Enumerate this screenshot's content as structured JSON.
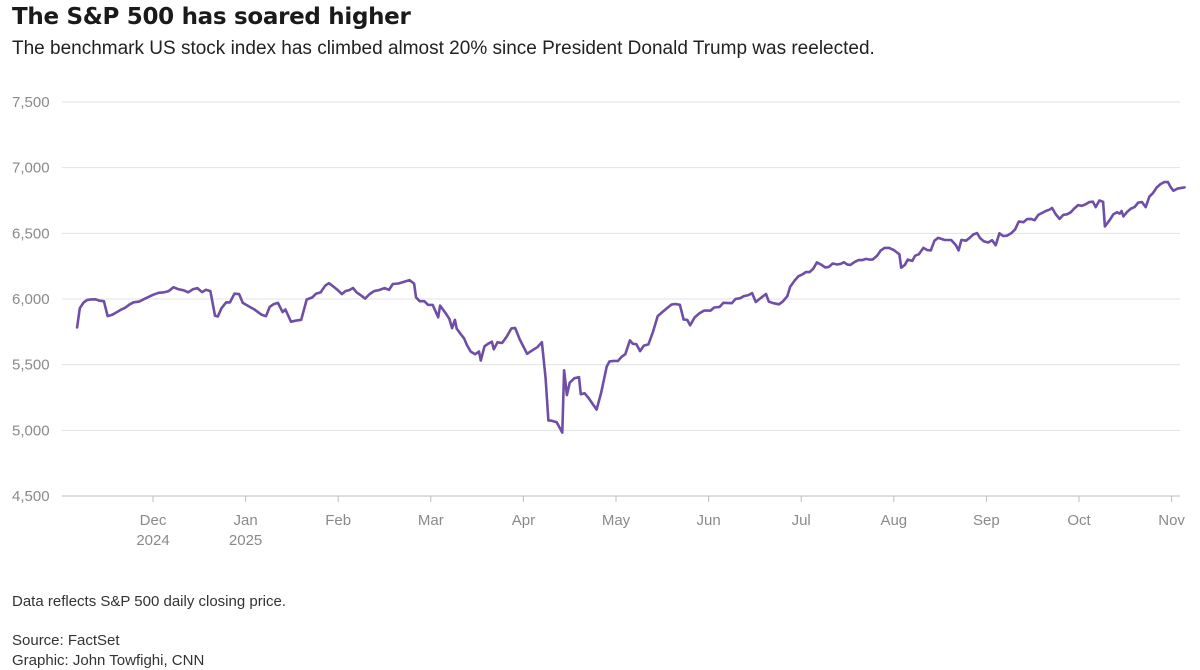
{
  "header": {
    "title": "The S&P 500 has soared higher",
    "subtitle": "The benchmark US stock index has climbed almost 20% since President Donald Trump was reelected."
  },
  "footer": {
    "note": "Data reflects S&P 500 daily closing price.",
    "source": "Source: FactSet",
    "credit": "Graphic: John Towfighi, CNN"
  },
  "colors": {
    "line": "#6e4ea6",
    "grid": "#e3e3e3",
    "axis": "#bdbdbd",
    "tick_text": "#8a8a8a"
  },
  "chart_data": {
    "type": "line",
    "title": "The S&P 500 has soared higher",
    "xlabel": "",
    "ylabel": "",
    "ylim": [
      4500,
      7500
    ],
    "xlim": [
      -0.55,
      11.45
    ],
    "grid": true,
    "yticks": [
      {
        "value": 7500,
        "label": "7,500"
      },
      {
        "value": 7000,
        "label": "7,000"
      },
      {
        "value": 6500,
        "label": "6,500"
      },
      {
        "value": 6000,
        "label": "6,000"
      },
      {
        "value": 5500,
        "label": "5,500"
      },
      {
        "value": 5000,
        "label": "5,000"
      },
      {
        "value": 4500,
        "label": "4,500"
      }
    ],
    "xticks": [
      {
        "month": 0,
        "label": "Dec",
        "label2": "2024"
      },
      {
        "month": 1,
        "label": "Jan",
        "label2": "2025"
      },
      {
        "month": 2,
        "label": "Feb",
        "label2": ""
      },
      {
        "month": 3,
        "label": "Mar",
        "label2": ""
      },
      {
        "month": 4,
        "label": "Apr",
        "label2": ""
      },
      {
        "month": 5,
        "label": "May",
        "label2": ""
      },
      {
        "month": 6,
        "label": "Jun",
        "label2": ""
      },
      {
        "month": 7,
        "label": "Jul",
        "label2": ""
      },
      {
        "month": 8,
        "label": "Aug",
        "label2": ""
      },
      {
        "month": 9,
        "label": "Sep",
        "label2": ""
      },
      {
        "month": 10,
        "label": "Oct",
        "label2": ""
      },
      {
        "month": 11,
        "label": "Nov",
        "label2": ""
      }
    ],
    "x_unit": "months since Dec 1, 2024",
    "series": [
      {
        "name": "S&P 500 daily close",
        "points": [
          [
            -0.82,
            5783
          ],
          [
            -0.79,
            5930
          ],
          [
            -0.75,
            5973
          ],
          [
            -0.71,
            5993
          ],
          [
            -0.67,
            5997
          ],
          [
            -0.62,
            5998
          ],
          [
            -0.58,
            5987
          ],
          [
            -0.53,
            5983
          ],
          [
            -0.49,
            5870
          ],
          [
            -0.44,
            5880
          ],
          [
            -0.39,
            5900
          ],
          [
            -0.34,
            5921
          ],
          [
            -0.3,
            5934
          ],
          [
            -0.25,
            5960
          ],
          [
            -0.21,
            5975
          ],
          [
            -0.15,
            5980
          ],
          [
            -0.11,
            5995
          ],
          [
            0.0,
            6032
          ],
          [
            0.06,
            6047
          ],
          [
            0.12,
            6051
          ],
          [
            0.17,
            6060
          ],
          [
            0.22,
            6090
          ],
          [
            0.27,
            6075
          ],
          [
            0.33,
            6066
          ],
          [
            0.38,
            6051
          ],
          [
            0.43,
            6074
          ],
          [
            0.48,
            6083
          ],
          [
            0.53,
            6052
          ],
          [
            0.57,
            6070
          ],
          [
            0.62,
            6060
          ],
          [
            0.67,
            5872
          ],
          [
            0.7,
            5867
          ],
          [
            0.74,
            5930
          ],
          [
            0.79,
            5975
          ],
          [
            0.83,
            5974
          ],
          [
            0.88,
            6040
          ],
          [
            0.93,
            6037
          ],
          [
            0.97,
            5970
          ],
          [
            1.04,
            5942
          ],
          [
            1.1,
            5918
          ],
          [
            1.17,
            5881
          ],
          [
            1.22,
            5869
          ],
          [
            1.26,
            5940
          ],
          [
            1.3,
            5960
          ],
          [
            1.35,
            5970
          ],
          [
            1.4,
            5900
          ],
          [
            1.43,
            5920
          ],
          [
            1.49,
            5827
          ],
          [
            1.54,
            5835
          ],
          [
            1.6,
            5842
          ],
          [
            1.66,
            5996
          ],
          [
            1.72,
            6012
          ],
          [
            1.76,
            6040
          ],
          [
            1.81,
            6050
          ],
          [
            1.86,
            6101
          ],
          [
            1.9,
            6120
          ],
          [
            1.94,
            6100
          ],
          [
            1.99,
            6071
          ],
          [
            2.04,
            6037
          ],
          [
            2.08,
            6061
          ],
          [
            2.12,
            6068
          ],
          [
            2.16,
            6084
          ],
          [
            2.2,
            6050
          ],
          [
            2.25,
            6025
          ],
          [
            2.29,
            6003
          ],
          [
            2.34,
            6038
          ],
          [
            2.39,
            6061
          ],
          [
            2.44,
            6068
          ],
          [
            2.5,
            6083
          ],
          [
            2.55,
            6070
          ],
          [
            2.59,
            6114
          ],
          [
            2.65,
            6118
          ],
          [
            2.7,
            6129
          ],
          [
            2.77,
            6144
          ],
          [
            2.82,
            6117
          ],
          [
            2.84,
            6013
          ],
          [
            2.88,
            5983
          ],
          [
            2.93,
            5983
          ],
          [
            2.97,
            5956
          ],
          [
            3.02,
            5955
          ],
          [
            3.08,
            5861
          ],
          [
            3.1,
            5950
          ],
          [
            3.16,
            5893
          ],
          [
            3.2,
            5849
          ],
          [
            3.23,
            5778
          ],
          [
            3.26,
            5842
          ],
          [
            3.28,
            5775
          ],
          [
            3.32,
            5736
          ],
          [
            3.36,
            5700
          ],
          [
            3.39,
            5650
          ],
          [
            3.43,
            5600
          ],
          [
            3.48,
            5580
          ],
          [
            3.52,
            5600
          ],
          [
            3.54,
            5531
          ],
          [
            3.58,
            5640
          ],
          [
            3.62,
            5660
          ],
          [
            3.66,
            5675
          ],
          [
            3.68,
            5617
          ],
          [
            3.72,
            5670
          ],
          [
            3.77,
            5665
          ],
          [
            3.82,
            5713
          ],
          [
            3.87,
            5776
          ],
          [
            3.91,
            5780
          ],
          [
            3.96,
            5693
          ],
          [
            4.0,
            5638
          ],
          [
            4.04,
            5583
          ],
          [
            4.1,
            5611
          ],
          [
            4.15,
            5633
          ],
          [
            4.2,
            5671
          ],
          [
            4.24,
            5396
          ],
          [
            4.27,
            5074
          ],
          [
            4.3,
            5074
          ],
          [
            4.36,
            5062
          ],
          [
            4.42,
            4983
          ],
          [
            4.44,
            5457
          ],
          [
            4.47,
            5268
          ],
          [
            4.5,
            5363
          ],
          [
            4.55,
            5396
          ],
          [
            4.6,
            5405
          ],
          [
            4.62,
            5275
          ],
          [
            4.66,
            5283
          ],
          [
            4.7,
            5250
          ],
          [
            4.75,
            5200
          ],
          [
            4.79,
            5158
          ],
          [
            4.84,
            5288
          ],
          [
            4.9,
            5485
          ],
          [
            4.93,
            5525
          ],
          [
            4.98,
            5529
          ],
          [
            5.02,
            5528
          ],
          [
            5.06,
            5560
          ],
          [
            5.1,
            5580
          ],
          [
            5.15,
            5685
          ],
          [
            5.18,
            5660
          ],
          [
            5.22,
            5656
          ],
          [
            5.26,
            5603
          ],
          [
            5.3,
            5645
          ],
          [
            5.35,
            5654
          ],
          [
            5.4,
            5750
          ],
          [
            5.45,
            5870
          ],
          [
            5.5,
            5900
          ],
          [
            5.55,
            5929
          ],
          [
            5.6,
            5958
          ],
          [
            5.64,
            5962
          ],
          [
            5.69,
            5956
          ],
          [
            5.73,
            5844
          ],
          [
            5.77,
            5841
          ],
          [
            5.8,
            5800
          ],
          [
            5.85,
            5860
          ],
          [
            5.9,
            5890
          ],
          [
            5.95,
            5912
          ],
          [
            5.99,
            5912
          ],
          [
            6.02,
            5912
          ],
          [
            6.06,
            5935
          ],
          [
            6.12,
            5940
          ],
          [
            6.16,
            5971
          ],
          [
            6.2,
            5970
          ],
          [
            6.25,
            5968
          ],
          [
            6.29,
            6000
          ],
          [
            6.34,
            6006
          ],
          [
            6.38,
            6022
          ],
          [
            6.43,
            6030
          ],
          [
            6.47,
            6045
          ],
          [
            6.51,
            5977
          ],
          [
            6.55,
            6000
          ],
          [
            6.62,
            6038
          ],
          [
            6.65,
            5980
          ],
          [
            6.7,
            5968
          ],
          [
            6.76,
            5960
          ],
          [
            6.8,
            5980
          ],
          [
            6.85,
            6021
          ],
          [
            6.88,
            6092
          ],
          [
            6.93,
            6141
          ],
          [
            6.97,
            6173
          ],
          [
            7.02,
            6190
          ],
          [
            7.05,
            6205
          ],
          [
            7.09,
            6205
          ],
          [
            7.13,
            6230
          ],
          [
            7.17,
            6279
          ],
          [
            7.22,
            6260
          ],
          [
            7.26,
            6240
          ],
          [
            7.3,
            6245
          ],
          [
            7.34,
            6270
          ],
          [
            7.39,
            6263
          ],
          [
            7.43,
            6268
          ],
          [
            7.46,
            6280
          ],
          [
            7.5,
            6262
          ],
          [
            7.53,
            6260
          ],
          [
            7.58,
            6283
          ],
          [
            7.62,
            6297
          ],
          [
            7.66,
            6296
          ],
          [
            7.7,
            6305
          ],
          [
            7.74,
            6300
          ],
          [
            7.77,
            6300
          ],
          [
            7.82,
            6330
          ],
          [
            7.86,
            6370
          ],
          [
            7.9,
            6389
          ],
          [
            7.95,
            6389
          ],
          [
            8.0,
            6372
          ],
          [
            8.02,
            6362
          ],
          [
            8.06,
            6340
          ],
          [
            8.08,
            6238
          ],
          [
            8.12,
            6260
          ],
          [
            8.15,
            6300
          ],
          [
            8.2,
            6290
          ],
          [
            8.23,
            6330
          ],
          [
            8.27,
            6340
          ],
          [
            8.32,
            6389
          ],
          [
            8.36,
            6373
          ],
          [
            8.4,
            6370
          ],
          [
            8.44,
            6445
          ],
          [
            8.48,
            6466
          ],
          [
            8.55,
            6449
          ],
          [
            8.62,
            6449
          ],
          [
            8.67,
            6411
          ],
          [
            8.7,
            6370
          ],
          [
            8.73,
            6450
          ],
          [
            8.78,
            6444
          ],
          [
            8.82,
            6466
          ],
          [
            8.86,
            6492
          ],
          [
            8.9,
            6502
          ],
          [
            8.93,
            6465
          ],
          [
            8.97,
            6440
          ],
          [
            9.02,
            6430
          ],
          [
            9.06,
            6448
          ],
          [
            9.1,
            6410
          ],
          [
            9.14,
            6500
          ],
          [
            9.18,
            6480
          ],
          [
            9.22,
            6482
          ],
          [
            9.27,
            6502
          ],
          [
            9.31,
            6530
          ],
          [
            9.35,
            6590
          ],
          [
            9.4,
            6585
          ],
          [
            9.44,
            6608
          ],
          [
            9.48,
            6610
          ],
          [
            9.52,
            6600
          ],
          [
            9.56,
            6640
          ],
          [
            9.6,
            6655
          ],
          [
            9.64,
            6670
          ],
          [
            9.68,
            6680
          ],
          [
            9.71,
            6693
          ],
          [
            9.75,
            6644
          ],
          [
            9.79,
            6610
          ],
          [
            9.83,
            6640
          ],
          [
            9.87,
            6645
          ],
          [
            9.91,
            6660
          ],
          [
            9.95,
            6690
          ],
          [
            9.99,
            6715
          ],
          [
            10.03,
            6710
          ],
          [
            10.07,
            6720
          ],
          [
            10.11,
            6738
          ],
          [
            10.15,
            6741
          ],
          [
            10.18,
            6700
          ],
          [
            10.22,
            6750
          ],
          [
            10.26,
            6740
          ],
          [
            10.28,
            6552
          ],
          [
            10.33,
            6600
          ],
          [
            10.37,
            6644
          ],
          [
            10.41,
            6660
          ],
          [
            10.44,
            6650
          ],
          [
            10.46,
            6670
          ],
          [
            10.48,
            6629
          ],
          [
            10.52,
            6664
          ],
          [
            10.56,
            6688
          ],
          [
            10.6,
            6700
          ],
          [
            10.64,
            6735
          ],
          [
            10.68,
            6738
          ],
          [
            10.72,
            6700
          ],
          [
            10.76,
            6780
          ],
          [
            10.8,
            6808
          ],
          [
            10.84,
            6850
          ],
          [
            10.88,
            6875
          ],
          [
            10.92,
            6890
          ],
          [
            10.96,
            6891
          ],
          [
            10.99,
            6851
          ],
          [
            11.02,
            6824
          ],
          [
            11.06,
            6840
          ],
          [
            11.1,
            6845
          ],
          [
            11.14,
            6850
          ]
        ]
      }
    ]
  }
}
